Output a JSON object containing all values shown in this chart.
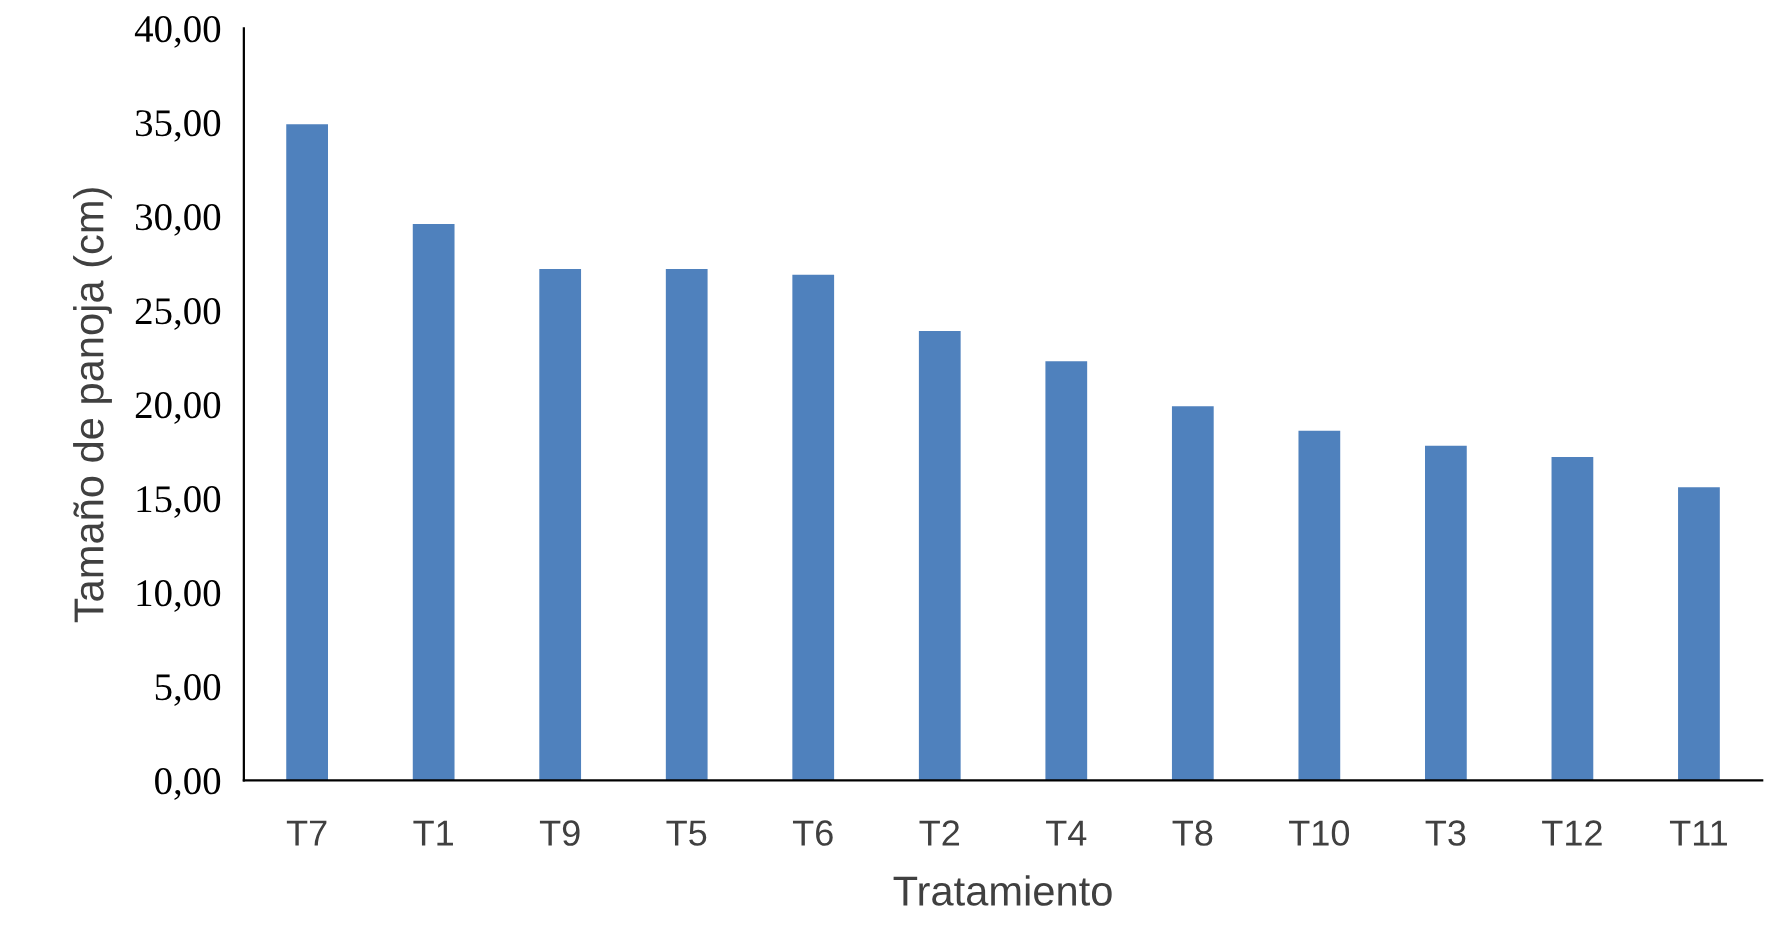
{
  "chart_data": {
    "type": "bar",
    "xlabel": "Tratamiento",
    "ylabel": "Tamaño de panoja (cm)",
    "categories": [
      "T7",
      "T1",
      "T9",
      "T5",
      "T6",
      "T2",
      "T4",
      "T8",
      "T10",
      "T3",
      "T12",
      "T11"
    ],
    "values": [
      34.9,
      29.6,
      27.2,
      27.2,
      26.9,
      23.9,
      22.3,
      19.9,
      18.6,
      17.8,
      17.2,
      15.6
    ],
    "color": "#4f81bd",
    "ylim": [
      0,
      40
    ],
    "yticks": [
      {
        "value": 0,
        "label": "0,00"
      },
      {
        "value": 5,
        "label": "5,00"
      },
      {
        "value": 10,
        "label": "10,00"
      },
      {
        "value": 15,
        "label": "15,00"
      },
      {
        "value": 20,
        "label": "20,00"
      },
      {
        "value": 25,
        "label": "25,00"
      },
      {
        "value": 30,
        "label": "30,00"
      },
      {
        "value": 35,
        "label": "35,00"
      },
      {
        "value": 40,
        "label": "40,00"
      }
    ],
    "grid": false,
    "legend": false
  }
}
